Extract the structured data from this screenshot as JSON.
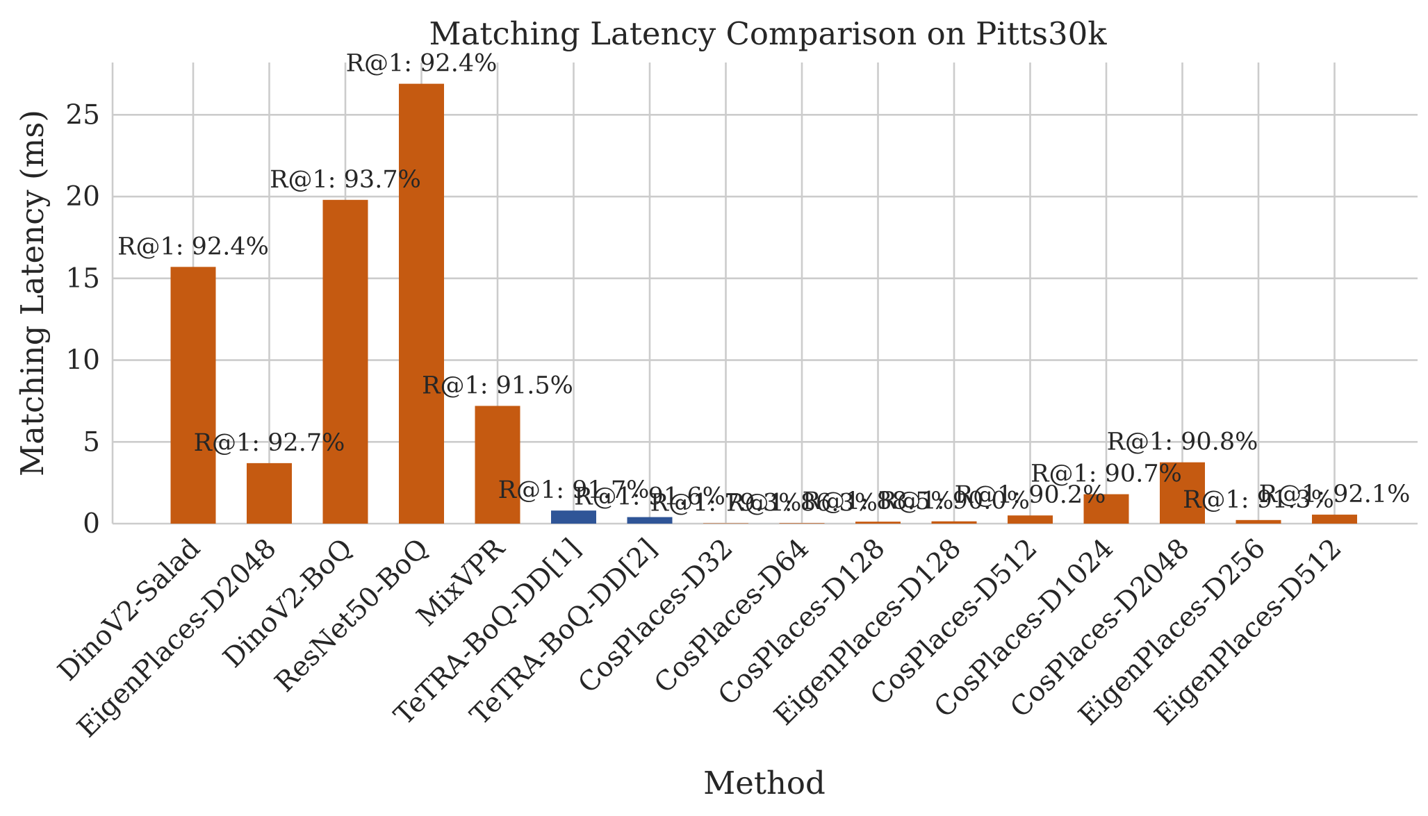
{
  "chart_data": {
    "type": "bar",
    "title": "Matching Latency Comparison on Pitts30k",
    "xlabel": "Method",
    "ylabel": "Matching Latency (ms)",
    "ylim": [
      0,
      28.2
    ],
    "yticks": [
      0,
      5,
      10,
      15,
      20,
      25
    ],
    "grid": true,
    "categories": [
      "DinoV2-Salad",
      "EigenPlaces-D2048",
      "DinoV2-BoQ",
      "ResNet50-BoQ",
      "MixVPR",
      "TeTRA-BoQ-DD[1]",
      "TeTRA-BoQ-DD[2]",
      "CosPlaces-D32",
      "CosPlaces-D64",
      "CosPlaces-D128",
      "EigenPlaces-D128",
      "CosPlaces-D512",
      "CosPlaces-D1024",
      "CosPlaces-D2048",
      "EigenPlaces-D256",
      "EigenPlaces-D512"
    ],
    "values": [
      15.7,
      3.7,
      19.8,
      26.9,
      7.2,
      0.8,
      0.4,
      0.02,
      0.03,
      0.12,
      0.14,
      0.5,
      1.8,
      3.75,
      0.22,
      0.55
    ],
    "bar_labels": [
      "R@1: 92.4%",
      "R@1: 92.7%",
      "R@1: 93.7%",
      "R@1: 92.4%",
      "R@1: 91.5%",
      "R@1: 91.7%",
      "R@1: 91.6%",
      "R@1: 79.3%",
      "R@1: 86.3%",
      "R@1: 88.5%",
      "R@1: 90.0%",
      "R@1: 90.2%",
      "R@1: 90.7%",
      "R@1: 90.8%",
      "R@1: 91.3%",
      "R@1: 92.1%"
    ],
    "bar_colors": [
      "#c55a11",
      "#c55a11",
      "#c55a11",
      "#c55a11",
      "#c55a11",
      "#2f5597",
      "#2f5597",
      "#c55a11",
      "#c55a11",
      "#c55a11",
      "#c55a11",
      "#c55a11",
      "#c55a11",
      "#c55a11",
      "#c55a11",
      "#c55a11"
    ]
  }
}
